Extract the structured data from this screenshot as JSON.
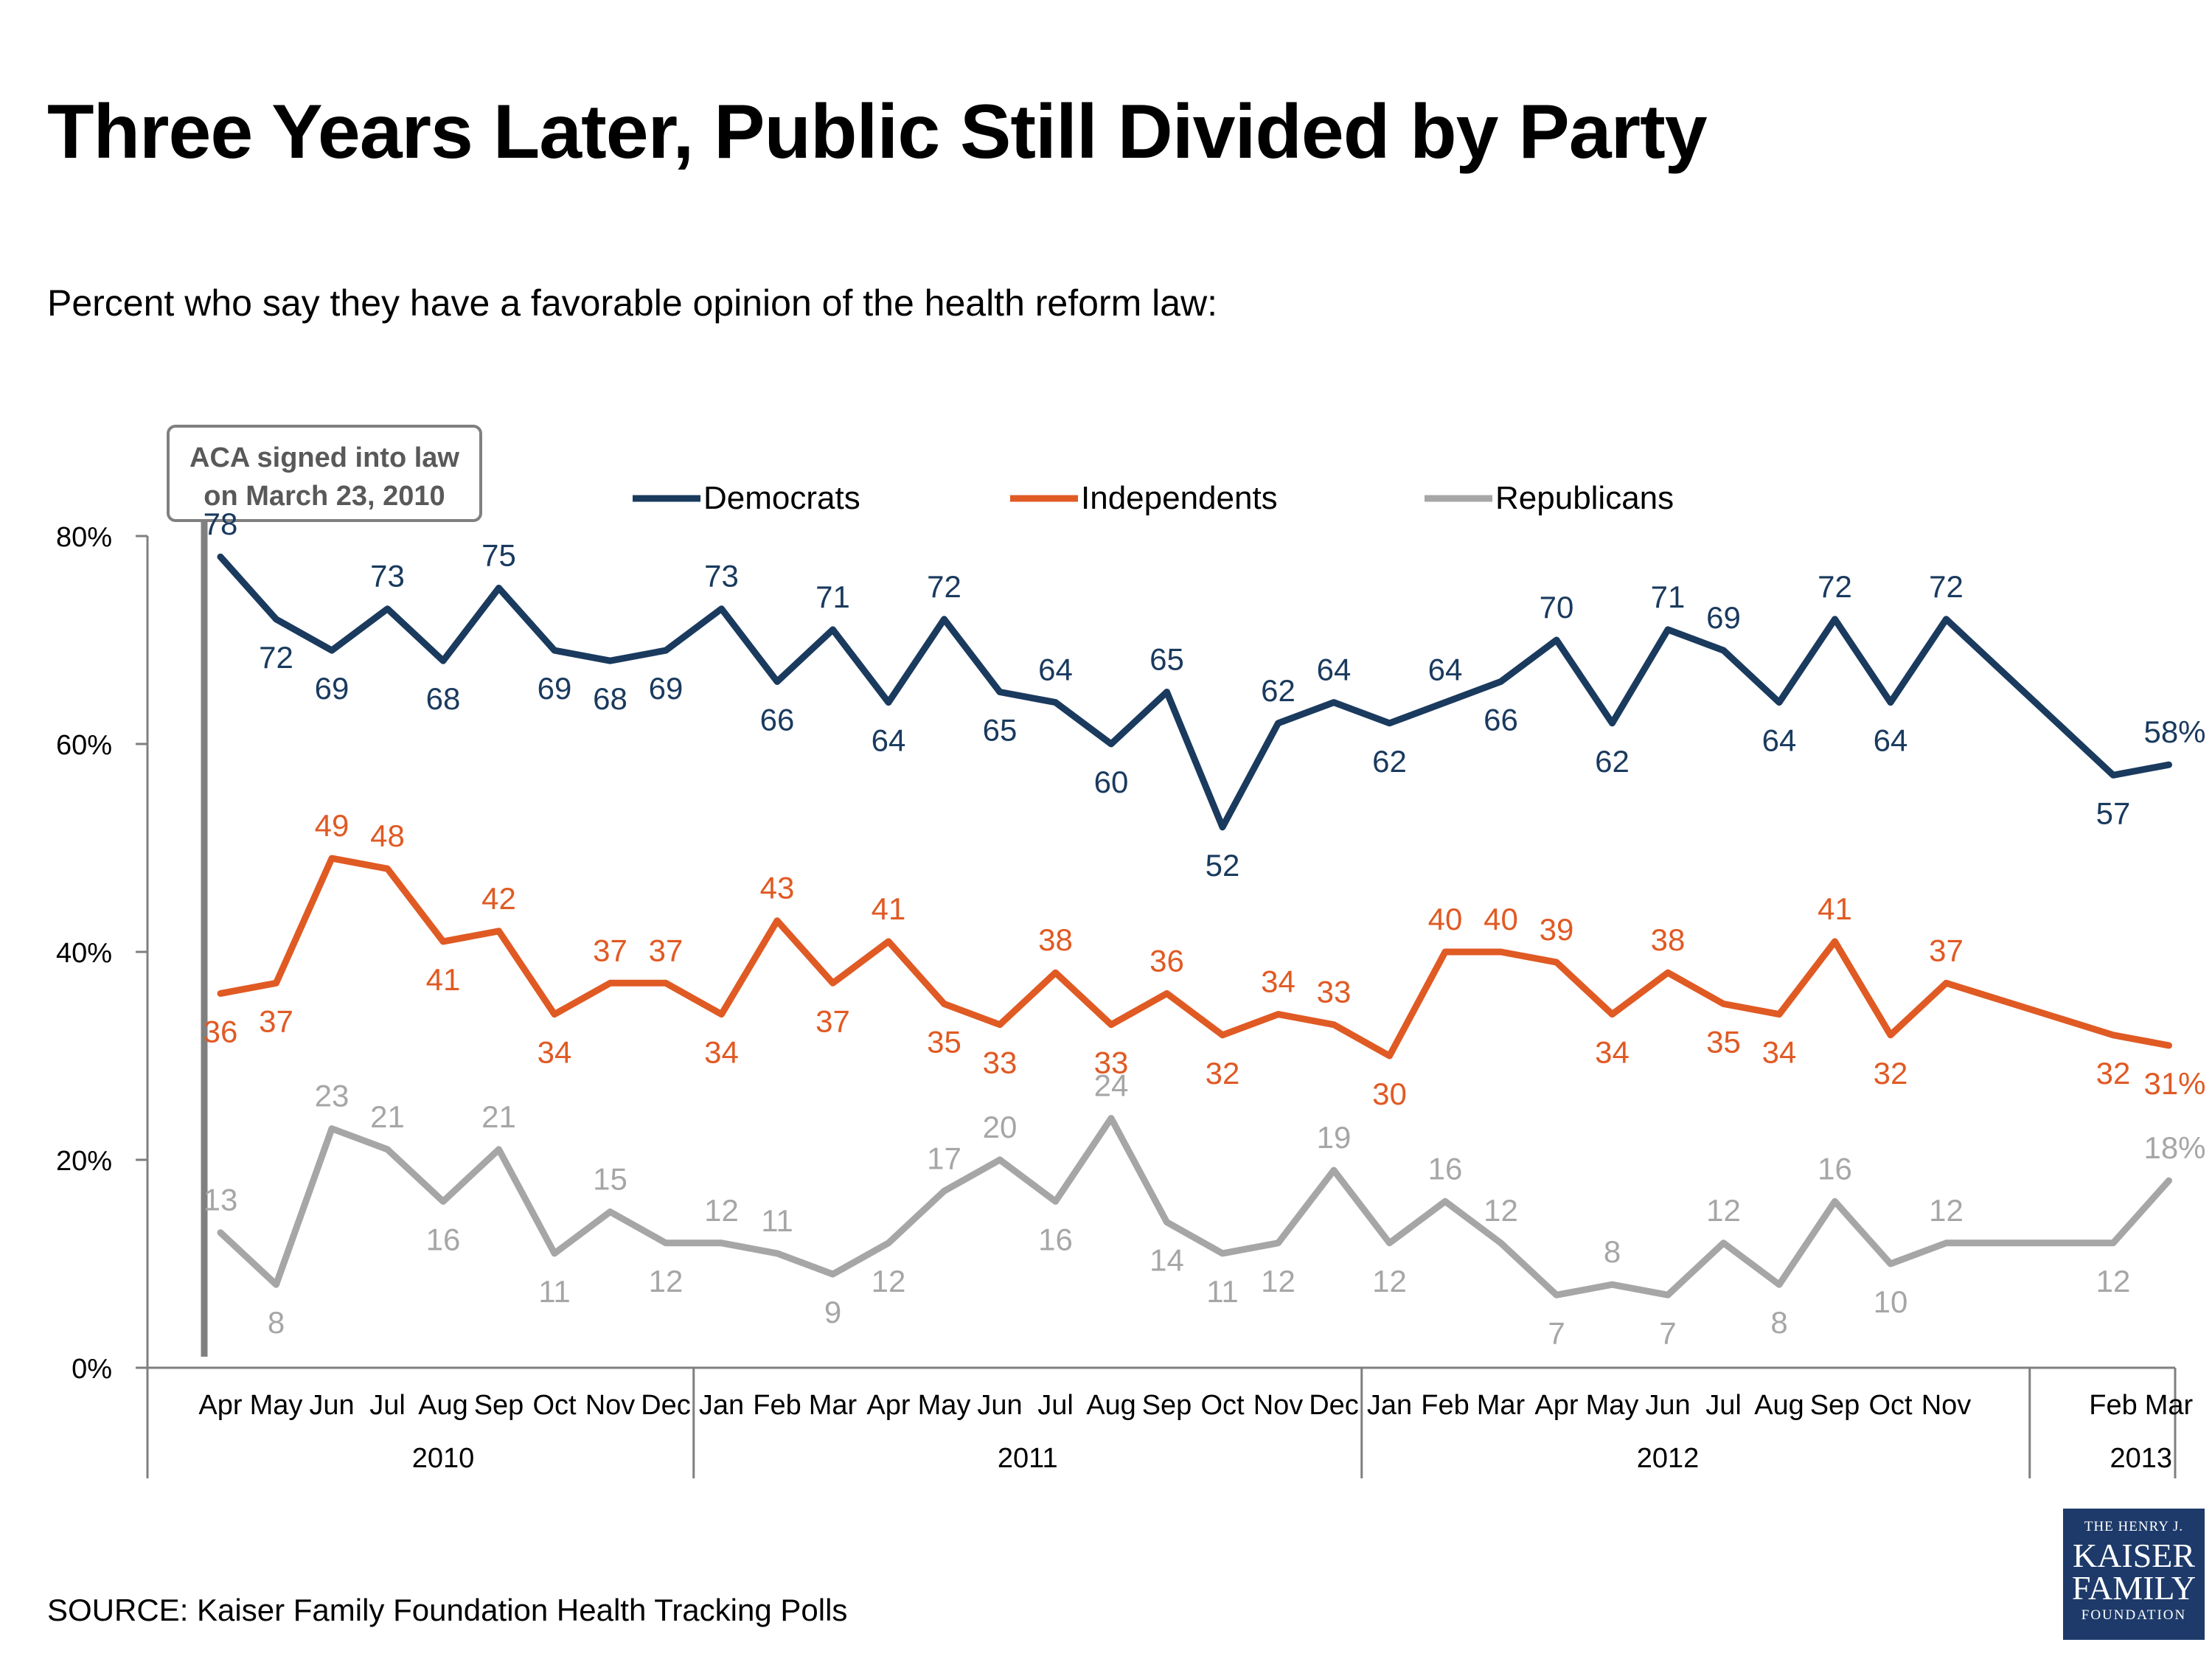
{
  "chart_data": {
    "type": "line",
    "title": "Three Years Later, Public Still Divided by Party",
    "subtitle": "Percent who say they have a favorable opinion of the health reform law:",
    "source": "SOURCE: Kaiser Family Foundation Health Tracking Polls",
    "annotation": {
      "line1": "ACA signed into law",
      "line2": "on March 23, 2010"
    },
    "ylim": [
      0,
      80
    ],
    "yticks": [
      "0%",
      "20%",
      "40%",
      "60%",
      "80%"
    ],
    "ytick_values": [
      0,
      20,
      40,
      60,
      80
    ],
    "legend_placement": "top-center",
    "x": [
      "Apr",
      "May",
      "Jun",
      "Jul",
      "Aug",
      "Sep",
      "Oct",
      "Nov",
      "Dec",
      "Jan",
      "Feb",
      "Mar",
      "Apr",
      "May",
      "Jun",
      "Jul",
      "Aug",
      "Sep",
      "Oct",
      "Nov",
      "Dec",
      "Jan",
      "Feb",
      "Mar",
      "Apr",
      "May",
      "Jun",
      "Jul",
      "Aug",
      "Sep",
      "Oct",
      "Nov",
      "Feb",
      "Mar"
    ],
    "x_month_index": [
      0,
      1,
      2,
      3,
      4,
      5,
      6,
      7,
      8,
      9,
      10,
      11,
      12,
      13,
      14,
      15,
      16,
      17,
      18,
      19,
      20,
      21,
      22,
      23,
      24,
      25,
      26,
      27,
      28,
      29,
      30,
      31,
      34,
      35
    ],
    "years": [
      {
        "label": "2010",
        "first": 0,
        "last": 8
      },
      {
        "label": "2011",
        "first": 9,
        "last": 20
      },
      {
        "label": "2012",
        "first": 21,
        "last": 31
      },
      {
        "label": "2013",
        "first": 32,
        "last": 33
      }
    ],
    "series": [
      {
        "name": "Democrats",
        "color": "#1a3a5e",
        "values": [
          78,
          72,
          69,
          73,
          68,
          75,
          69,
          68,
          69,
          73,
          66,
          71,
          64,
          72,
          65,
          64,
          60,
          65,
          52,
          62,
          64,
          62,
          64,
          66,
          70,
          62,
          71,
          69,
          64,
          72,
          64,
          72,
          57,
          58
        ]
      },
      {
        "name": "Independents",
        "color": "#e05a24",
        "values": [
          36,
          37,
          49,
          48,
          41,
          42,
          34,
          37,
          37,
          34,
          43,
          37,
          41,
          35,
          33,
          38,
          33,
          36,
          32,
          34,
          33,
          30,
          40,
          40,
          39,
          34,
          38,
          35,
          34,
          41,
          32,
          37,
          32,
          31
        ]
      },
      {
        "name": "Republicans",
        "color": "#a6a6a6",
        "values": [
          13,
          8,
          23,
          21,
          16,
          21,
          11,
          15,
          12,
          12,
          11,
          9,
          12,
          17,
          20,
          16,
          24,
          14,
          11,
          12,
          19,
          12,
          16,
          12,
          7,
          8,
          7,
          12,
          8,
          16,
          10,
          12,
          12,
          18
        ]
      }
    ]
  },
  "logo": {
    "line1": "THE HENRY J.",
    "line2": "KAISER",
    "line3": "FAMILY",
    "line4": "FOUNDATION"
  }
}
